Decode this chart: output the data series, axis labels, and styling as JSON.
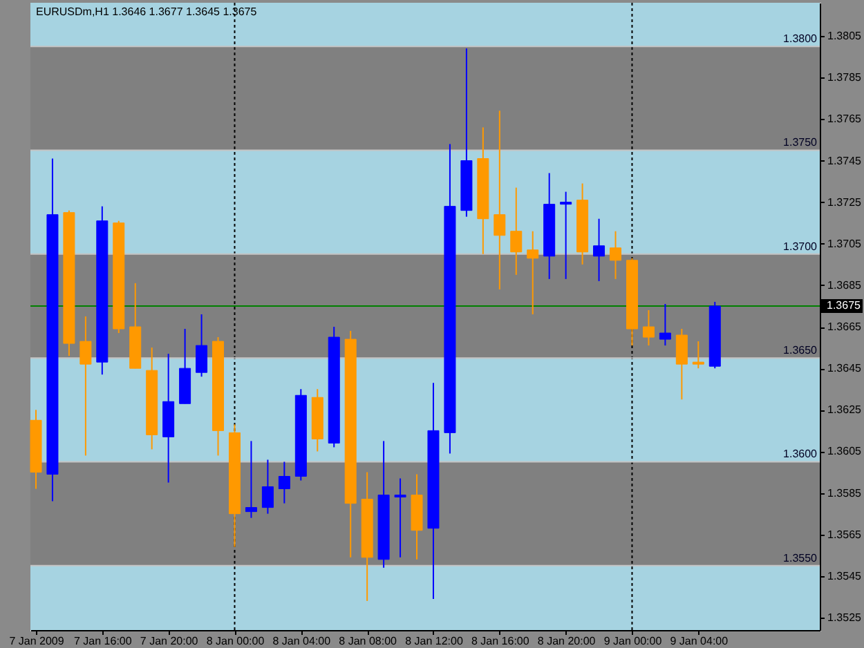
{
  "chart_data": {
    "type": "candlestick",
    "title": "EURUSDm,H1  1.3646 1.3677 1.3645 1.3675",
    "x": [
      "2009-01-07T12:00",
      "2009-01-07T13:00",
      "2009-01-07T14:00",
      "2009-01-07T15:00",
      "2009-01-07T16:00",
      "2009-01-07T17:00",
      "2009-01-07T18:00",
      "2009-01-07T19:00",
      "2009-01-07T20:00",
      "2009-01-07T21:00",
      "2009-01-07T22:00",
      "2009-01-07T23:00",
      "2009-01-08T00:00",
      "2009-01-08T01:00",
      "2009-01-08T02:00",
      "2009-01-08T03:00",
      "2009-01-08T04:00",
      "2009-01-08T05:00",
      "2009-01-08T06:00",
      "2009-01-08T07:00",
      "2009-01-08T08:00",
      "2009-01-08T09:00",
      "2009-01-08T10:00",
      "2009-01-08T11:00",
      "2009-01-08T12:00",
      "2009-01-08T13:00",
      "2009-01-08T14:00",
      "2009-01-08T15:00",
      "2009-01-08T16:00",
      "2009-01-08T17:00",
      "2009-01-08T18:00",
      "2009-01-08T19:00",
      "2009-01-08T20:00",
      "2009-01-08T21:00",
      "2009-01-08T22:00",
      "2009-01-08T23:00",
      "2009-01-09T00:00",
      "2009-01-09T01:00",
      "2009-01-09T02:00",
      "2009-01-09T03:00",
      "2009-01-09T04:00",
      "2009-01-09T05:00"
    ],
    "ohlc": [
      [
        1.362,
        1.3625,
        1.3587,
        1.3595
      ],
      [
        1.3594,
        1.3746,
        1.3581,
        1.3719
      ],
      [
        1.372,
        1.3721,
        1.3651,
        1.3657
      ],
      [
        1.3658,
        1.367,
        1.3603,
        1.3647
      ],
      [
        1.3648,
        1.3723,
        1.3642,
        1.3716
      ],
      [
        1.3715,
        1.3716,
        1.3662,
        1.3664
      ],
      [
        1.3665,
        1.3686,
        1.3645,
        1.3645
      ],
      [
        1.3644,
        1.3655,
        1.3606,
        1.3613
      ],
      [
        1.3612,
        1.3652,
        1.359,
        1.3629
      ],
      [
        1.3628,
        1.3664,
        1.3628,
        1.3645
      ],
      [
        1.3643,
        1.3671,
        1.3641,
        1.3656
      ],
      [
        1.3658,
        1.366,
        1.3603,
        1.3615
      ],
      [
        1.3614,
        1.3618,
        1.3559,
        1.3575
      ],
      [
        1.3576,
        1.361,
        1.3573,
        1.3578
      ],
      [
        1.3578,
        1.3601,
        1.3575,
        1.3588
      ],
      [
        1.3587,
        1.36,
        1.358,
        1.3593
      ],
      [
        1.3593,
        1.3635,
        1.3591,
        1.3632
      ],
      [
        1.3631,
        1.3635,
        1.3605,
        1.3611
      ],
      [
        1.3609,
        1.3665,
        1.3607,
        1.366
      ],
      [
        1.3659,
        1.3663,
        1.3554,
        1.358
      ],
      [
        1.3582,
        1.3595,
        1.3533,
        1.3554
      ],
      [
        1.3553,
        1.361,
        1.3549,
        1.3584
      ],
      [
        1.3583,
        1.3592,
        1.3554,
        1.3584
      ],
      [
        1.3584,
        1.3594,
        1.3553,
        1.3567
      ],
      [
        1.3568,
        1.3638,
        1.3534,
        1.3615
      ],
      [
        1.3614,
        1.3753,
        1.3604,
        1.3723
      ],
      [
        1.3721,
        1.3799,
        1.3718,
        1.3745
      ],
      [
        1.3746,
        1.3761,
        1.37,
        1.3717
      ],
      [
        1.3719,
        1.3769,
        1.3683,
        1.3709
      ],
      [
        1.3711,
        1.3732,
        1.369,
        1.3701
      ],
      [
        1.3702,
        1.3711,
        1.3671,
        1.3698
      ],
      [
        1.3699,
        1.3739,
        1.3688,
        1.3724
      ],
      [
        1.3724,
        1.373,
        1.3688,
        1.3725
      ],
      [
        1.3726,
        1.3734,
        1.3695,
        1.3701
      ],
      [
        1.3699,
        1.3717,
        1.3687,
        1.3704
      ],
      [
        1.3703,
        1.3711,
        1.3688,
        1.3697
      ],
      [
        1.3697,
        1.3698,
        1.3656,
        1.3664
      ],
      [
        1.3665,
        1.3673,
        1.3656,
        1.366
      ],
      [
        1.3659,
        1.3676,
        1.3656,
        1.3662
      ],
      [
        1.3661,
        1.3664,
        1.363,
        1.3647
      ],
      [
        1.3648,
        1.3658,
        1.3645,
        1.3647
      ],
      [
        1.3646,
        1.3677,
        1.3645,
        1.3675
      ]
    ],
    "colors": [
      "#ff9900",
      "#0000ff",
      "#ff9900",
      "#ff9900",
      "#0000ff",
      "#ff9900",
      "#ff9900",
      "#ff9900",
      "#0000ff",
      "#0000ff",
      "#0000ff",
      "#ff9900",
      "#ff9900",
      "#0000ff",
      "#0000ff",
      "#0000ff",
      "#0000ff",
      "#ff9900",
      "#0000ff",
      "#ff9900",
      "#ff9900",
      "#0000ff",
      "#0000ff",
      "#ff9900",
      "#0000ff",
      "#0000ff",
      "#0000ff",
      "#ff9900",
      "#ff9900",
      "#ff9900",
      "#ff9900",
      "#0000ff",
      "#0000ff",
      "#ff9900",
      "#0000ff",
      "#ff9900",
      "#ff9900",
      "#ff9900",
      "#0000ff",
      "#ff9900",
      "#ff9900",
      "#0000ff"
    ],
    "xlim": [
      "2009-01-07T11:40",
      "2009-01-09T11:20"
    ],
    "xticks": [
      {
        "value": "2009-01-07T12:00",
        "label": "7 Jan 2009"
      },
      {
        "value": "2009-01-07T16:00",
        "label": "7 Jan 16:00"
      },
      {
        "value": "2009-01-07T20:00",
        "label": "7 Jan 20:00"
      },
      {
        "value": "2009-01-08T00:00",
        "label": "8 Jan 00:00"
      },
      {
        "value": "2009-01-08T04:00",
        "label": "8 Jan 04:00"
      },
      {
        "value": "2009-01-08T08:00",
        "label": "8 Jan 08:00"
      },
      {
        "value": "2009-01-08T12:00",
        "label": "8 Jan 12:00"
      },
      {
        "value": "2009-01-08T16:00",
        "label": "8 Jan 16:00"
      },
      {
        "value": "2009-01-08T20:00",
        "label": "8 Jan 20:00"
      },
      {
        "value": "2009-01-09T00:00",
        "label": "9 Jan 00:00"
      },
      {
        "value": "2009-01-09T04:00",
        "label": "9 Jan 04:00"
      }
    ],
    "ylim": [
      1.3519,
      1.3821
    ],
    "yticks": [
      1.3805,
      1.3785,
      1.3765,
      1.3745,
      1.3725,
      1.3705,
      1.3685,
      1.3665,
      1.3645,
      1.3625,
      1.3605,
      1.3585,
      1.3565,
      1.3545,
      1.3525
    ],
    "bands": [
      {
        "axis": "y",
        "from": 1.3519,
        "to": 1.355,
        "color": "#a6d3e1"
      },
      {
        "axis": "y",
        "from": 1.355,
        "to": 1.36,
        "color": "#808080"
      },
      {
        "axis": "y",
        "from": 1.36,
        "to": 1.365,
        "color": "#a6d3e1"
      },
      {
        "axis": "y",
        "from": 1.365,
        "to": 1.37,
        "color": "#808080"
      },
      {
        "axis": "y",
        "from": 1.37,
        "to": 1.375,
        "color": "#a6d3e1"
      },
      {
        "axis": "y",
        "from": 1.375,
        "to": 1.38,
        "color": "#808080"
      },
      {
        "axis": "y",
        "from": 1.38,
        "to": 1.3821,
        "color": "#a6d3e1"
      }
    ],
    "ref_lines": [
      {
        "axis": "x",
        "value": "2009-01-08T00:00",
        "color": "#000000",
        "line_style": "dotted"
      },
      {
        "axis": "x",
        "value": "2009-01-09T00:00",
        "color": "#000000",
        "line_style": "dotted"
      },
      {
        "axis": "y",
        "value": 1.38,
        "label": "1.3800",
        "color": "#c4c4c4"
      },
      {
        "axis": "y",
        "value": 1.375,
        "label": "1.3750",
        "color": "#c4c4c4"
      },
      {
        "axis": "y",
        "value": 1.37,
        "label": "1.3700",
        "color": "#c4c4c4"
      },
      {
        "axis": "y",
        "value": 1.365,
        "label": "1.3650",
        "color": "#c4c4c4"
      },
      {
        "axis": "y",
        "value": 1.36,
        "label": "1.3600",
        "color": "#c4c4c4"
      },
      {
        "axis": "y",
        "value": 1.355,
        "label": "1.3550",
        "color": "#c4c4c4"
      },
      {
        "axis": "y",
        "value": 1.3675,
        "label": "1.3675",
        "color": "#008000"
      }
    ]
  }
}
